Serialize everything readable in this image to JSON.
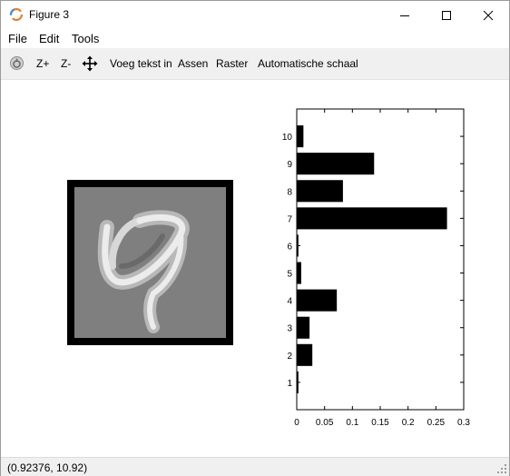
{
  "window": {
    "title": "Figure 3"
  },
  "menu": {
    "file": "File",
    "edit": "Edit",
    "tools": "Tools"
  },
  "toolbar": {
    "zoom_in": "Z+",
    "zoom_out": "Z-",
    "insert_text": "Voeg tekst in",
    "axes": "Assen",
    "grid": "Raster",
    "autoscale": "Automatische schaal"
  },
  "status": {
    "coordinates": "(0.92376, 10.92)"
  },
  "chart_data": {
    "type": "bar",
    "orientation": "horizontal",
    "categories": [
      "1",
      "2",
      "3",
      "4",
      "5",
      "6",
      "7",
      "8",
      "9",
      "10"
    ],
    "values": [
      0.003,
      0.028,
      0.023,
      0.072,
      0.008,
      0.003,
      0.27,
      0.083,
      0.139,
      0.012
    ],
    "xlim": [
      0,
      0.3
    ],
    "ylim": [
      0,
      11
    ],
    "xticks": [
      "0",
      "0.05",
      "0.1",
      "0.15",
      "0.2",
      "0.25",
      "0.3"
    ],
    "yticks": [
      "1",
      "2",
      "3",
      "4",
      "5",
      "6",
      "7",
      "8",
      "9",
      "10"
    ],
    "bar_color": "#000000",
    "grid": false,
    "title": "",
    "xlabel": "",
    "ylabel": ""
  }
}
